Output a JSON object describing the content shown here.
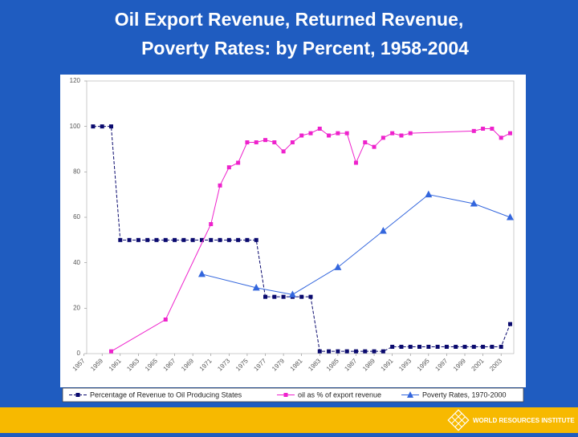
{
  "chart_data": {
    "type": "line",
    "title": "Oil Export Revenue, Returned Revenue,",
    "subtitle": "Poverty Rates: by Percent, 1958-2004",
    "xlim": [
      1957.3,
      2004.4
    ],
    "xticks": [
      1957,
      1959,
      1961,
      1963,
      1965,
      1967,
      1969,
      1971,
      1973,
      1975,
      1977,
      1979,
      1981,
      1983,
      1985,
      1987,
      1989,
      1991,
      1993,
      1995,
      1997,
      1999,
      2001,
      2003
    ],
    "ylim": [
      0,
      120
    ],
    "yticks": [
      0,
      20,
      40,
      60,
      80,
      100,
      120
    ],
    "series": [
      {
        "name": "Percentage of Revenue to Oil Producing States",
        "color": "#0a0a6e",
        "marker": "square",
        "x": [
          1958,
          1959,
          1960,
          1961,
          1962,
          1963,
          1964,
          1965,
          1966,
          1967,
          1968,
          1969,
          1970,
          1971,
          1972,
          1973,
          1974,
          1975,
          1976,
          1977,
          1978,
          1979,
          1980,
          1981,
          1982,
          1983,
          1984,
          1985,
          1986,
          1987,
          1988,
          1989,
          1990,
          1991,
          1992,
          1993,
          1994,
          1995,
          1996,
          1997,
          1998,
          1999,
          2000,
          2001,
          2002,
          2003,
          2004
        ],
        "values": [
          100,
          100,
          100,
          50,
          50,
          50,
          50,
          50,
          50,
          50,
          50,
          50,
          50,
          50,
          50,
          50,
          50,
          50,
          50,
          25,
          25,
          25,
          25,
          25,
          25,
          1,
          1,
          1,
          1,
          1,
          1,
          1,
          1,
          3,
          3,
          3,
          3,
          3,
          3,
          3,
          3,
          3,
          3,
          3,
          3,
          3,
          13
        ]
      },
      {
        "name": "oil as % of export revenue",
        "color": "#ee22cc",
        "marker": "square",
        "x": [
          1960,
          1966,
          1971,
          1972,
          1973,
          1974,
          1975,
          1976,
          1977,
          1978,
          1979,
          1980,
          1981,
          1982,
          1983,
          1984,
          1985,
          1986,
          1987,
          1988,
          1989,
          1990,
          1991,
          1992,
          1993,
          2000,
          2001,
          2002,
          2003,
          2004
        ],
        "values": [
          1,
          15,
          57,
          74,
          82,
          84,
          93,
          93,
          94,
          93,
          89,
          93,
          96,
          97,
          99,
          96,
          97,
          97,
          84,
          93,
          91,
          95,
          97,
          96,
          97,
          98,
          99,
          99,
          95,
          97
        ]
      },
      {
        "name": "Poverty Rates, 1970-2000",
        "color": "#3366dd",
        "marker": "triangle",
        "x": [
          1970,
          1976,
          1980,
          1985,
          1990,
          1995,
          2000,
          2004
        ],
        "values": [
          35,
          29,
          26,
          38,
          54,
          70,
          66,
          60
        ]
      }
    ]
  },
  "footer": "WORLD RESOURCES INSTITUTE"
}
